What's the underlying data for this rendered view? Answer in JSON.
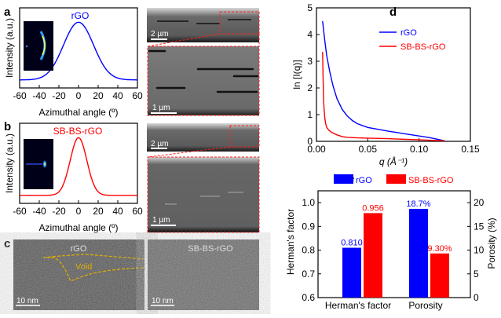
{
  "panels": {
    "a": {
      "label": "a",
      "series_name": "rGO",
      "ylabel": "Intensity (a.u.)",
      "xlabel": "Azimuthal  angle (º)",
      "sem_scale_top": "2 µm",
      "sem_scale_zoom": "1 µm"
    },
    "b": {
      "label": "b",
      "series_name": "SB-BS-rGO",
      "ylabel": "Intensity (a.u.)",
      "xlabel": "Azimuthal  angle (º)",
      "sem_scale_top": "2 µm",
      "sem_scale_zoom": "1 µm"
    },
    "c": {
      "label": "c",
      "left_title": "rGO",
      "void_label": "Void",
      "right_title": "SB-BS-rGO",
      "scale_left": "10 nm",
      "scale_right": "10 nm"
    },
    "d": {
      "label": "d"
    },
    "e": {
      "label": "e"
    }
  },
  "colors": {
    "rGO": "#0000ff",
    "SB-BS-rGO": "#ff0000",
    "void": "#e0b000"
  },
  "chart_data": [
    {
      "panel": "a",
      "type": "line",
      "xlabel": "Azimuthal  angle (º)",
      "ylabel": "Intensity (a.u.)",
      "xlim": [
        -60,
        60
      ],
      "xticks": [
        "-60",
        "-40",
        "-20",
        "0",
        "20",
        "40",
        "60"
      ],
      "series": [
        {
          "name": "rGO",
          "shape": "gaussian",
          "center": 0,
          "fwhm": 36
        }
      ]
    },
    {
      "panel": "b",
      "type": "line",
      "xlabel": "Azimuthal  angle (º)",
      "ylabel": "Intensity (a.u.)",
      "xlim": [
        -60,
        60
      ],
      "xticks": [
        "-60",
        "-40",
        "-20",
        "0",
        "20",
        "40",
        "60"
      ],
      "series": [
        {
          "name": "SB-BS-rGO",
          "shape": "gaussian",
          "center": 0,
          "fwhm": 20
        }
      ]
    },
    {
      "panel": "d",
      "type": "line",
      "xlabel": "q (Å⁻¹)",
      "ylabel": "ln [I(q)]",
      "xlim": [
        0,
        0.15
      ],
      "ylim": [
        0,
        5
      ],
      "xticks": [
        "0.00",
        "0.05",
        "0.10",
        "0.15"
      ],
      "yticks": [
        "0",
        "1",
        "2",
        "3",
        "4",
        "5"
      ],
      "legend": "top-right",
      "series": [
        {
          "name": "rGO",
          "x": [
            0.006,
            0.008,
            0.01,
            0.013,
            0.016,
            0.02,
            0.025,
            0.03,
            0.035,
            0.04,
            0.05,
            0.06,
            0.07,
            0.08,
            0.09,
            0.1,
            0.11,
            0.125
          ],
          "y": [
            4.5,
            3.8,
            3.2,
            2.6,
            2.1,
            1.6,
            1.2,
            0.95,
            0.78,
            0.66,
            0.52,
            0.45,
            0.38,
            0.32,
            0.26,
            0.2,
            0.14,
            0.02
          ]
        },
        {
          "name": "SB-BS-rGO",
          "x": [
            0.006,
            0.0065,
            0.007,
            0.008,
            0.009,
            0.01,
            0.012,
            0.015,
            0.02,
            0.025,
            0.03,
            0.04,
            0.05,
            0.07,
            0.09,
            0.11,
            0.125
          ],
          "y": [
            3.35,
            2.3,
            1.5,
            0.9,
            0.65,
            0.52,
            0.42,
            0.33,
            0.24,
            0.18,
            0.15,
            0.13,
            0.12,
            0.1,
            0.07,
            0.04,
            0.02
          ]
        }
      ]
    },
    {
      "panel": "e",
      "type": "bar",
      "categories": [
        "Herman's factor",
        "Porosity"
      ],
      "legend": "top",
      "ylabel": "Herman's factor",
      "ylim": [
        0.6,
        1.05
      ],
      "yticks": [
        "0.6",
        "0.7",
        "0.8",
        "0.9",
        "1.0"
      ],
      "y2label": "Porosity (%)",
      "y2lim": [
        0,
        22.5
      ],
      "y2ticks": [
        "0",
        "5",
        "10",
        "15",
        "20"
      ],
      "series": [
        {
          "name": "rGO",
          "values": [
            0.81,
            18.7
          ],
          "labels": [
            "0.810",
            "18.7%"
          ]
        },
        {
          "name": "SB-BS-rGO",
          "values": [
            0.956,
            9.3
          ],
          "labels": [
            "0.956",
            "9.30%"
          ]
        }
      ]
    }
  ]
}
